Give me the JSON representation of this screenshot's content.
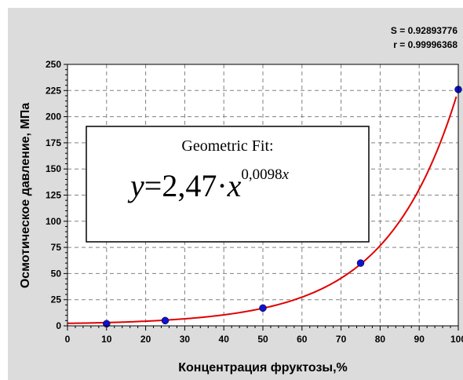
{
  "stats": {
    "s_line": "S = 0.92893776",
    "r_line": "r = 0.99996368"
  },
  "fit_box": {
    "title": "Geometric Fit:",
    "equation": {
      "y": "y",
      "equals": "=",
      "coef": "2,47·",
      "x": "x",
      "exponent": "0,0098",
      "exponent_var": "x"
    }
  },
  "colors": {
    "background": "#dcdcdc",
    "plot_area": "#ffffff",
    "curve": "#e00000",
    "points": "#1010d0",
    "grid": "#808080"
  },
  "chart_data": {
    "type": "scatter",
    "xlabel": "Концентрация фруктозы,%",
    "ylabel": "Осмотическое давление, МПа",
    "xlim": [
      0,
      100
    ],
    "ylim": [
      0,
      250
    ],
    "xticks": [
      "0",
      "10",
      "20",
      "30",
      "40",
      "50",
      "60",
      "70",
      "80",
      "90",
      "100"
    ],
    "yticks": [
      "0",
      "25",
      "50",
      "75",
      "100",
      "125",
      "150",
      "175",
      "200",
      "225",
      "250"
    ],
    "grid": true,
    "series": [
      {
        "kind": "points",
        "x": [
          10,
          25,
          50,
          75,
          100
        ],
        "y": [
          2,
          5,
          17,
          60,
          226
        ]
      },
      {
        "kind": "fit_curve",
        "model": "y = 2.47 * x^(0.0098 x)",
        "a": 2.47,
        "b": 0.0098
      }
    ]
  }
}
